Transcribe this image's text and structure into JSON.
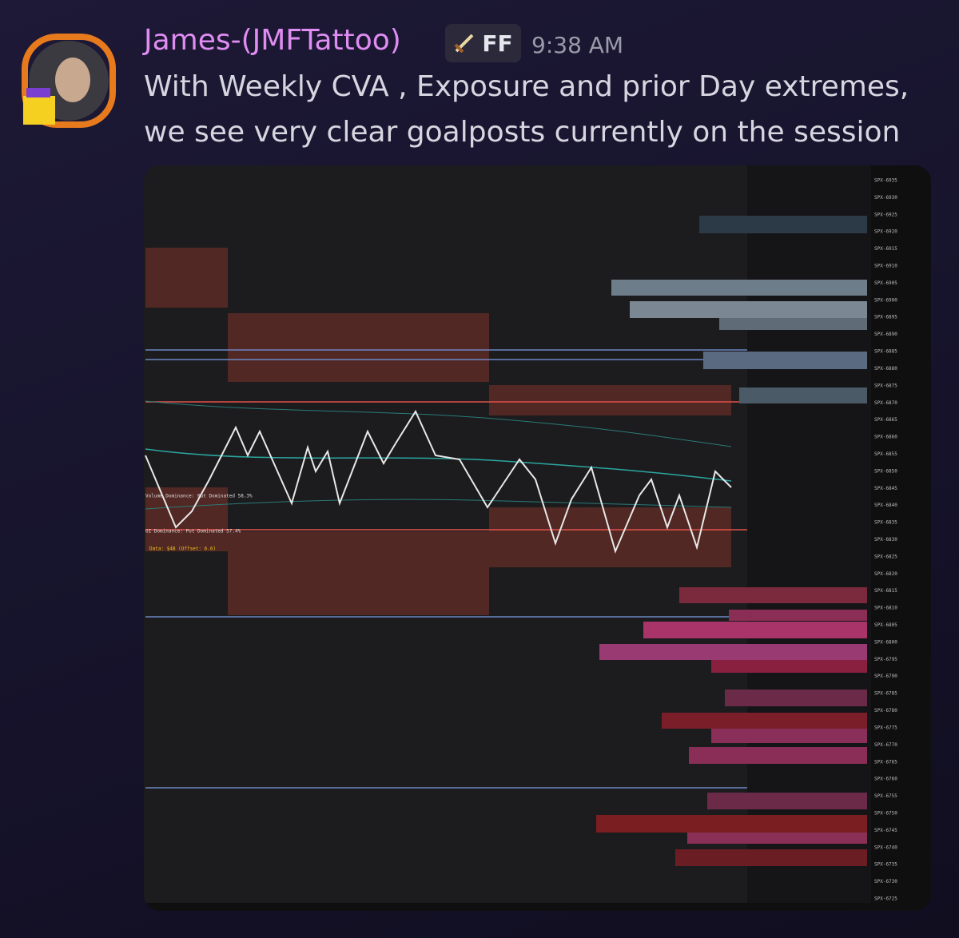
{
  "message": {
    "author": "James-(JMFTattoo)",
    "tag": "FF",
    "time": "9:38 AM",
    "lines": [
      "With Weekly CVA , Exposure and prior Day extremes,",
      "we see very clear goalposts currently on the session"
    ]
  },
  "image": {
    "annotations": [
      "Volume Dominance: Put Dominated 58.3%",
      "OI Dominance: Put Dominated 57.4%",
      "Data: $4B (Offset: 6.6)"
    ],
    "strikes": [
      "SPX-6935",
      "SPX-6930",
      "SPX-6925",
      "SPX-6920",
      "SPX-6915",
      "SPX-6910",
      "SPX-6905",
      "SPX-6900",
      "SPX-6895",
      "SPX-6890",
      "SPX-6885",
      "SPX-6880",
      "SPX-6875",
      "SPX-6870",
      "SPX-6865",
      "SPX-6860",
      "SPX-6855",
      "SPX-6850",
      "SPX-6845",
      "SPX-6840",
      "SPX-6835",
      "SPX-6830",
      "SPX-6825",
      "SPX-6820",
      "SPX-6815",
      "SPX-6810",
      "SPX-6805",
      "SPX-6800",
      "SPX-6795",
      "SPX-6790",
      "SPX-6785",
      "SPX-6780",
      "SPX-6775",
      "SPX-6770",
      "SPX-6765",
      "SPX-6760",
      "SPX-6755",
      "SPX-6750",
      "SPX-6745",
      "SPX-6740",
      "SPX-6735",
      "SPX-6730",
      "SPX-6725"
    ]
  }
}
